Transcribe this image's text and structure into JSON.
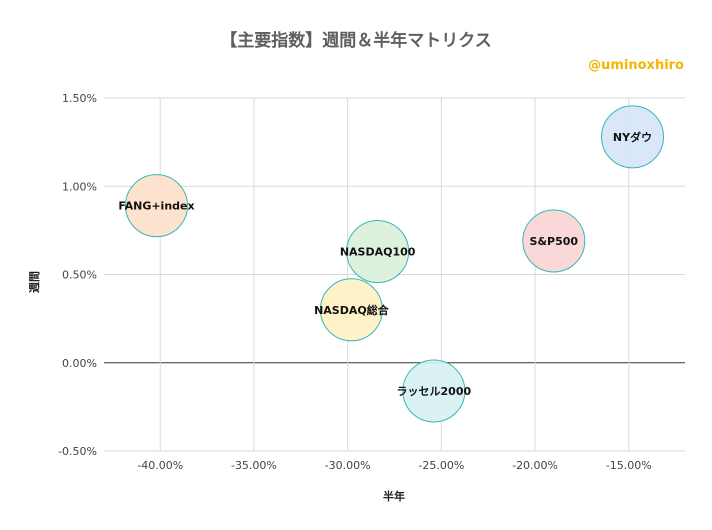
{
  "title": "【主要指数】週間＆半年マトリクス",
  "watermark": "@uminoxhiro",
  "chart_data": {
    "type": "bubble",
    "title": "【主要指数】週間＆半年マトリクス",
    "xlabel": "半年",
    "ylabel": "週間",
    "xlim": [
      -0.43,
      -0.12
    ],
    "ylim": [
      -0.005,
      0.015
    ],
    "x_ticks": [
      -0.4,
      -0.35,
      -0.3,
      -0.25,
      -0.2,
      -0.15
    ],
    "x_tick_labels": [
      "-40.00%",
      "-35.00%",
      "-30.00%",
      "-25.00%",
      "-20.00%",
      "-15.00%"
    ],
    "y_ticks": [
      -0.005,
      0.0,
      0.005,
      0.01,
      0.015
    ],
    "y_tick_labels": [
      "-0.50%",
      "0.00%",
      "0.50%",
      "1.00%",
      "1.50%"
    ],
    "grid": true,
    "points": [
      {
        "name": "FANG+index",
        "x": -0.402,
        "y": 0.0089,
        "color": "#fde0c8"
      },
      {
        "name": "NASDAQ100",
        "x": -0.284,
        "y": 0.0063,
        "color": "#d9efd9"
      },
      {
        "name": "NASDAQ総合",
        "x": -0.298,
        "y": 0.003,
        "color": "#fff0c2"
      },
      {
        "name": "ラッセル2000",
        "x": -0.254,
        "y": -0.0016,
        "color": "#d6f1f2"
      },
      {
        "name": "S&P500",
        "x": -0.19,
        "y": 0.0069,
        "color": "#fad4d4"
      },
      {
        "name": "NYダウ",
        "x": -0.148,
        "y": 0.0128,
        "color": "#d6e4fb"
      }
    ],
    "bubble_stroke": "#38b6b6"
  }
}
